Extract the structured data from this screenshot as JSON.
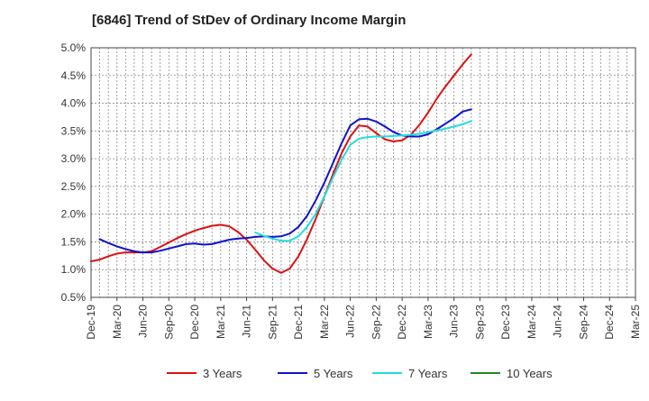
{
  "chart_data": {
    "type": "line",
    "title": "[6846]  Trend of StDev of Ordinary Income Margin",
    "xlabel": "",
    "ylabel": "",
    "ylim": [
      0.005,
      0.05
    ],
    "y_ticks": [
      "0.5%",
      "1.0%",
      "1.5%",
      "2.0%",
      "2.5%",
      "3.0%",
      "3.5%",
      "4.0%",
      "4.5%",
      "5.0%"
    ],
    "x_ticks": [
      "Dec-19",
      "Mar-20",
      "Jun-20",
      "Sep-20",
      "Dec-20",
      "Mar-21",
      "Jun-21",
      "Sep-21",
      "Dec-21",
      "Mar-22",
      "Jun-22",
      "Sep-22",
      "Dec-22",
      "Mar-23",
      "Jun-23",
      "Sep-23",
      "Dec-23",
      "Mar-24",
      "Jun-24",
      "Sep-24",
      "Dec-24",
      "Mar-25"
    ],
    "grid": true,
    "legend_position": "bottom",
    "series": [
      {
        "name": "3 Years",
        "color": "#dd1111",
        "values": [
          [
            0,
            0.0115
          ],
          [
            1,
            0.0118
          ],
          [
            2,
            0.0124
          ],
          [
            3,
            0.0129
          ],
          [
            4,
            0.0131
          ],
          [
            5,
            0.0131
          ],
          [
            6,
            0.0131
          ],
          [
            7,
            0.0133
          ],
          [
            8,
            0.0141
          ],
          [
            9,
            0.0149
          ],
          [
            10,
            0.0157
          ],
          [
            11,
            0.0164
          ],
          [
            12,
            0.017
          ],
          [
            13,
            0.0175
          ],
          [
            14,
            0.0179
          ],
          [
            15,
            0.0181
          ],
          [
            16,
            0.0178
          ],
          [
            17,
            0.0168
          ],
          [
            18,
            0.0154
          ],
          [
            19,
            0.0136
          ],
          [
            20,
            0.0117
          ],
          [
            21,
            0.0102
          ],
          [
            22,
            0.0094
          ],
          [
            23,
            0.0102
          ],
          [
            24,
            0.0124
          ],
          [
            25,
            0.0155
          ],
          [
            26,
            0.0192
          ],
          [
            27,
            0.0232
          ],
          [
            28,
            0.0272
          ],
          [
            29,
            0.031
          ],
          [
            30,
            0.034
          ],
          [
            31,
            0.036
          ],
          [
            32,
            0.0358
          ],
          [
            33,
            0.0346
          ],
          [
            34,
            0.0335
          ],
          [
            35,
            0.0331
          ],
          [
            36,
            0.0333
          ],
          [
            37,
            0.0343
          ],
          [
            38,
            0.0361
          ],
          [
            39,
            0.0383
          ],
          [
            40,
            0.0408
          ],
          [
            41,
            0.043
          ],
          [
            42,
            0.045
          ],
          [
            43,
            0.047
          ],
          [
            44,
            0.0488
          ]
        ]
      },
      {
        "name": "5 Years",
        "color": "#1111cc",
        "values": [
          [
            1,
            0.0155
          ],
          [
            2,
            0.0148
          ],
          [
            3,
            0.0142
          ],
          [
            4,
            0.0137
          ],
          [
            5,
            0.0133
          ],
          [
            6,
            0.0131
          ],
          [
            7,
            0.0131
          ],
          [
            8,
            0.0134
          ],
          [
            9,
            0.0138
          ],
          [
            10,
            0.0142
          ],
          [
            11,
            0.0146
          ],
          [
            12,
            0.0147
          ],
          [
            13,
            0.0145
          ],
          [
            14,
            0.0146
          ],
          [
            15,
            0.015
          ],
          [
            16,
            0.0154
          ],
          [
            17,
            0.0156
          ],
          [
            18,
            0.0157
          ],
          [
            19,
            0.0159
          ],
          [
            20,
            0.016
          ],
          [
            21,
            0.0159
          ],
          [
            22,
            0.016
          ],
          [
            23,
            0.0165
          ],
          [
            24,
            0.0177
          ],
          [
            25,
            0.0197
          ],
          [
            26,
            0.0225
          ],
          [
            27,
            0.0257
          ],
          [
            28,
            0.0292
          ],
          [
            29,
            0.0328
          ],
          [
            30,
            0.036
          ],
          [
            31,
            0.0371
          ],
          [
            32,
            0.0372
          ],
          [
            33,
            0.0367
          ],
          [
            34,
            0.0358
          ],
          [
            35,
            0.0348
          ],
          [
            36,
            0.0342
          ],
          [
            37,
            0.034
          ],
          [
            38,
            0.034
          ],
          [
            39,
            0.0344
          ],
          [
            40,
            0.0353
          ],
          [
            41,
            0.0363
          ],
          [
            42,
            0.0373
          ],
          [
            43,
            0.0385
          ],
          [
            44,
            0.0389
          ]
        ]
      },
      {
        "name": "7 Years",
        "color": "#22dddd",
        "values": [
          [
            19,
            0.0167
          ],
          [
            20,
            0.0161
          ],
          [
            21,
            0.0156
          ],
          [
            22,
            0.0152
          ],
          [
            23,
            0.0152
          ],
          [
            24,
            0.016
          ],
          [
            25,
            0.0177
          ],
          [
            26,
            0.0201
          ],
          [
            27,
            0.0232
          ],
          [
            28,
            0.0266
          ],
          [
            29,
            0.0298
          ],
          [
            30,
            0.0325
          ],
          [
            31,
            0.0336
          ],
          [
            32,
            0.0339
          ],
          [
            33,
            0.034
          ],
          [
            34,
            0.034
          ],
          [
            35,
            0.0341
          ],
          [
            36,
            0.0342
          ],
          [
            37,
            0.0343
          ],
          [
            38,
            0.0345
          ],
          [
            39,
            0.0348
          ],
          [
            40,
            0.0351
          ],
          [
            41,
            0.0354
          ],
          [
            42,
            0.0358
          ],
          [
            43,
            0.0362
          ],
          [
            44,
            0.0368
          ]
        ]
      },
      {
        "name": "10 Years",
        "color": "#228822",
        "values": []
      }
    ]
  }
}
